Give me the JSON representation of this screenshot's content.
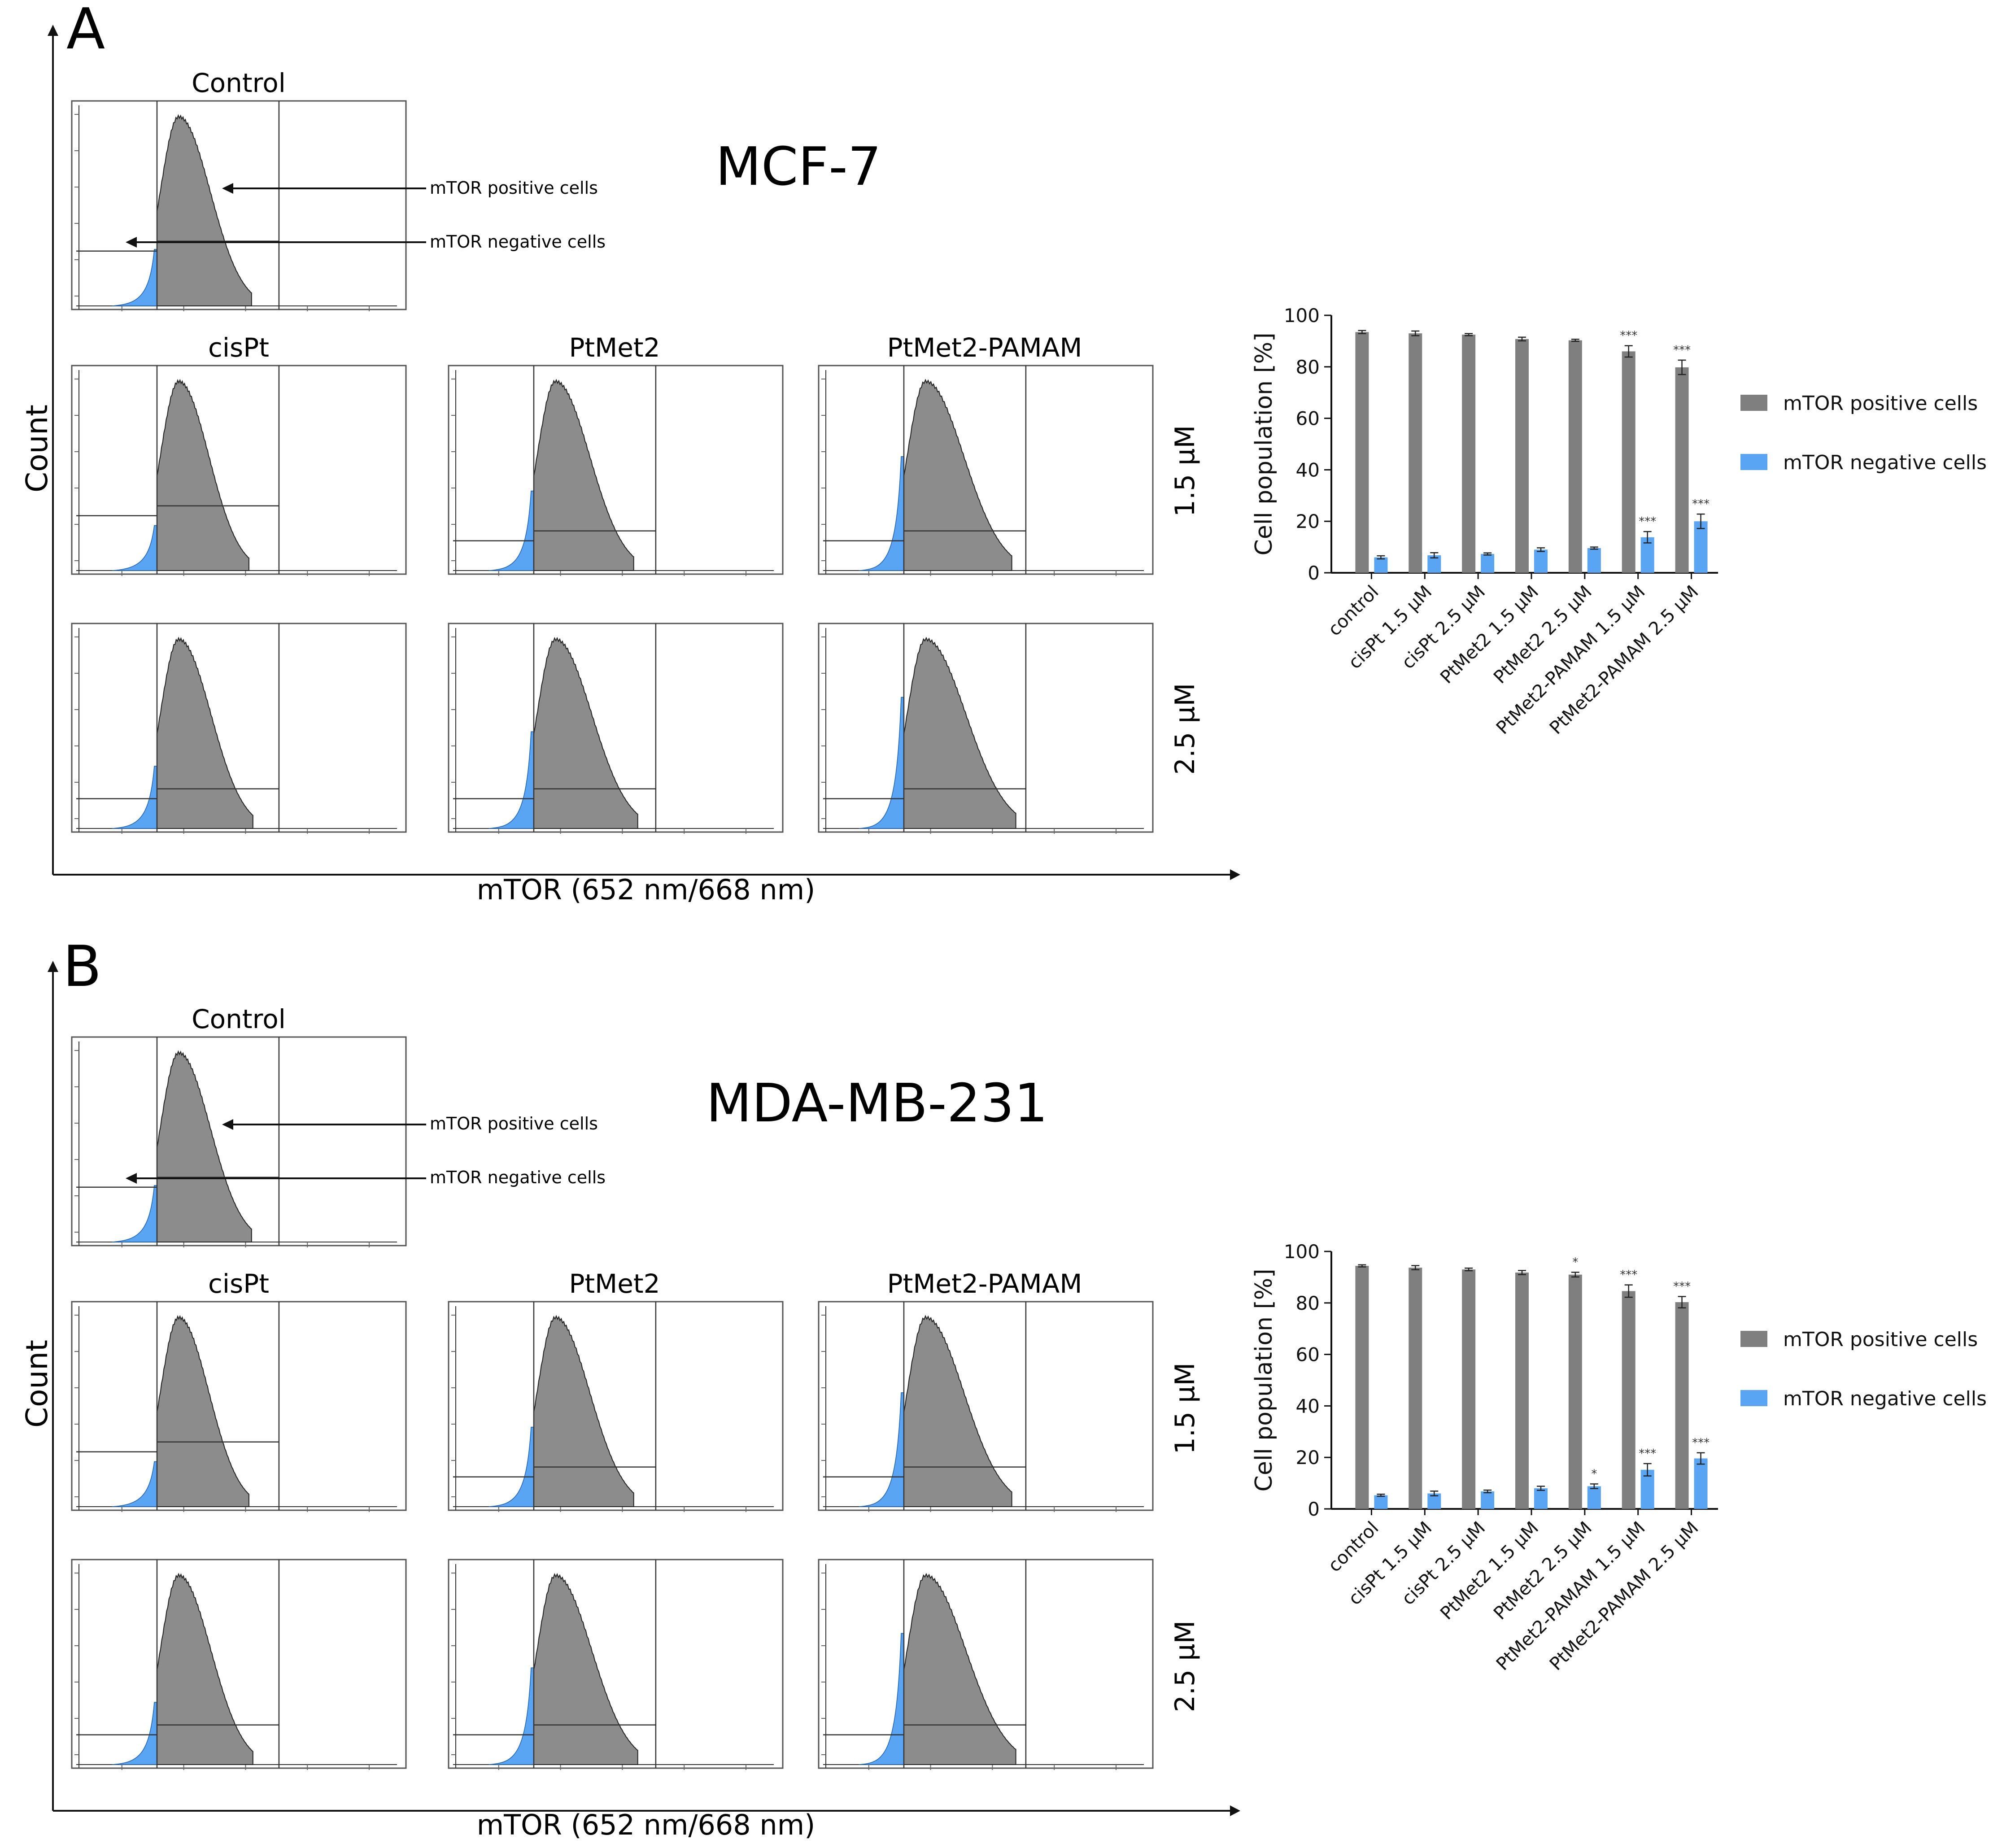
{
  "panels": [
    {
      "letter": "A",
      "cell_line": "MCF-7",
      "y_axis_label": "Count",
      "x_axis_label": "mTOR (652 nm/668 nm)",
      "control_title": "Control",
      "column_titles": [
        "cisPt",
        "PtMet2",
        "PtMet2-PAMAM"
      ],
      "row_labels": [
        "1.5 μM",
        "2.5 μM"
      ],
      "annotations": {
        "positive": "mTOR positive cells",
        "negative": "mTOR negative cells"
      }
    },
    {
      "letter": "B",
      "cell_line": "MDA-MB-231",
      "y_axis_label": "Count",
      "x_axis_label": "mTOR (652 nm/668 nm)",
      "control_title": "Control",
      "column_titles": [
        "cisPt",
        "PtMet2",
        "PtMet2-PAMAM"
      ],
      "row_labels": [
        "1.5 μM",
        "2.5 μM"
      ],
      "annotations": {
        "positive": "mTOR positive cells",
        "negative": "mTOR negative cells"
      }
    }
  ],
  "chart_data": [
    {
      "type": "bar",
      "panel": "A",
      "title": "",
      "xlabel": "",
      "ylabel": "Cell population [%]",
      "ylim": [
        0,
        100
      ],
      "yticks": [
        0,
        20,
        40,
        60,
        80,
        100
      ],
      "legend_position": "right",
      "categories": [
        "control",
        "cisPt 1.5 μM",
        "cisPt 2.5 μM",
        "PtMet2 1.5 μM",
        "PtMet2 2.5 μM",
        "PtMet2-PAMAM 1.5 μM",
        "PtMet2-PAMAM 2.5 μM"
      ],
      "series": [
        {
          "name": "mTOR positive cells",
          "color": "#7f7f7f",
          "values": [
            93.5,
            93,
            92.5,
            90.8,
            90.3,
            86,
            79.8
          ],
          "errors": [
            0.6,
            0.9,
            0.4,
            0.7,
            0.4,
            2.2,
            2.8
          ],
          "significance": [
            "",
            "",
            "",
            "",
            "",
            "***",
            "***"
          ]
        },
        {
          "name": "mTOR negative cells",
          "color": "#5aa4f4",
          "values": [
            6,
            6.8,
            7.3,
            9,
            9.6,
            13.8,
            20
          ],
          "errors": [
            0.6,
            1,
            0.4,
            0.7,
            0.4,
            2.2,
            2.8
          ],
          "significance": [
            "",
            "",
            "",
            "",
            "",
            "***",
            "***"
          ]
        }
      ]
    },
    {
      "type": "bar",
      "panel": "B",
      "title": "",
      "xlabel": "",
      "ylabel": "Cell population [%]",
      "ylim": [
        0,
        100
      ],
      "yticks": [
        0,
        20,
        40,
        60,
        80,
        100
      ],
      "legend_position": "right",
      "categories": [
        "control",
        "cisPt 1.5 μM",
        "cisPt 2.5 μM",
        "PtMet2 1.5 μM",
        "PtMet2 2.5 μM",
        "PtMet2-PAMAM 1.5 μM",
        "PtMet2-PAMAM 2.5 μM"
      ],
      "series": [
        {
          "name": "mTOR positive cells",
          "color": "#7f7f7f",
          "values": [
            94.4,
            93.7,
            93,
            91.8,
            91,
            84.6,
            80.3
          ],
          "errors": [
            0.4,
            0.8,
            0.5,
            0.8,
            0.9,
            2.4,
            2.2
          ],
          "significance": [
            "",
            "",
            "",
            "",
            "*",
            "***",
            "***"
          ]
        },
        {
          "name": "mTOR negative cells",
          "color": "#5aa4f4",
          "values": [
            5.3,
            6,
            6.8,
            8,
            8.8,
            15.2,
            19.6
          ],
          "errors": [
            0.4,
            0.9,
            0.5,
            0.8,
            0.9,
            2.4,
            2.2
          ],
          "significance": [
            "",
            "",
            "",
            "",
            "*",
            "***",
            "***"
          ]
        }
      ]
    }
  ]
}
